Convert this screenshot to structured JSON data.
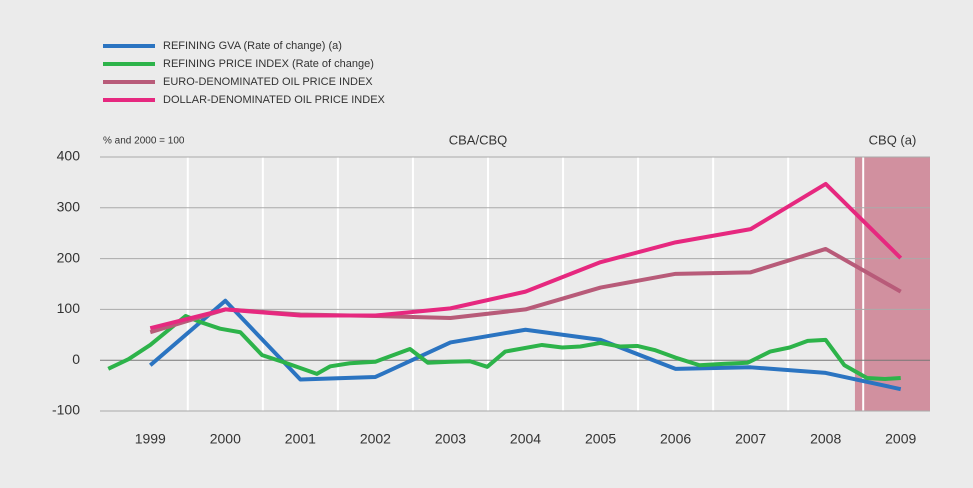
{
  "chart_data": {
    "type": "line",
    "y_axis_label": "% and 2000 = 100",
    "annotation": "CBA/CBQ",
    "shaded_region": {
      "label": "CBQ (a)",
      "xlim": [
        2008.39,
        2009.39
      ],
      "color": "#d1909f"
    },
    "xlim": [
      1998.33,
      2009.39
    ],
    "xticks": [
      1999,
      2000,
      2001,
      2002,
      2003,
      2004,
      2005,
      2006,
      2007,
      2008,
      2009
    ],
    "ylim": [
      -100,
      400
    ],
    "yticks": [
      -100,
      0,
      100,
      200,
      300,
      400
    ],
    "grid": true,
    "legend": "top-left",
    "series": [
      {
        "name": "REFINING GVA (Rate of change) (a)",
        "color": "#2b74c1",
        "x": [
          1999,
          2000,
          2001,
          2002,
          2003,
          2004,
          2005,
          2006,
          2007,
          2008,
          2009
        ],
        "values": [
          -10,
          117,
          -38,
          -33,
          35,
          60,
          40,
          -17,
          -14,
          -25,
          -57
        ]
      },
      {
        "name": "REFINING PRICE INDEX (Rate of change)",
        "color": "#2db34a",
        "x": [
          1998.44,
          1998.71,
          1999.0,
          1999.47,
          1999.67,
          1999.93,
          2000.2,
          2000.49,
          2000.8,
          2001.22,
          2001.4,
          2001.66,
          2002.0,
          2002.46,
          2002.7,
          2003.0,
          2003.26,
          2003.49,
          2003.73,
          2004.22,
          2004.49,
          2004.73,
          2005.0,
          2005.26,
          2005.49,
          2005.72,
          2006.0,
          2006.32,
          2006.66,
          2006.96,
          2007.26,
          2007.52,
          2007.76,
          2008.0,
          2008.25,
          2008.55,
          2008.79,
          2009.0
        ],
        "values": [
          -17,
          2,
          30,
          87,
          75,
          62,
          55,
          10,
          -5,
          -27,
          -12,
          -6,
          -3,
          22,
          -5,
          -3,
          -2,
          -13,
          17,
          30,
          25,
          27,
          34,
          27,
          28,
          20,
          5,
          -10,
          -7,
          -5,
          17,
          25,
          38,
          40,
          -10,
          -35,
          -37,
          -35
        ]
      },
      {
        "name": "EURO-DENOMINATED OIL PRICE INDEX",
        "color": "#b85b79",
        "x": [
          1999,
          2000,
          2001,
          2002,
          2003,
          2004,
          2005,
          2006,
          2007,
          2008,
          2009
        ],
        "values": [
          55,
          100,
          90,
          87,
          83,
          100,
          143,
          170,
          173,
          219,
          135
        ]
      },
      {
        "name": "DOLLAR-DENOMINATED OIL PRICE INDEX",
        "color": "#e6287f",
        "x": [
          1999,
          2000,
          2001,
          2002,
          2003,
          2004,
          2005,
          2006,
          2007,
          2008,
          2009
        ],
        "values": [
          63,
          100,
          88,
          88,
          102,
          135,
          193,
          232,
          258,
          347,
          201
        ]
      }
    ]
  }
}
